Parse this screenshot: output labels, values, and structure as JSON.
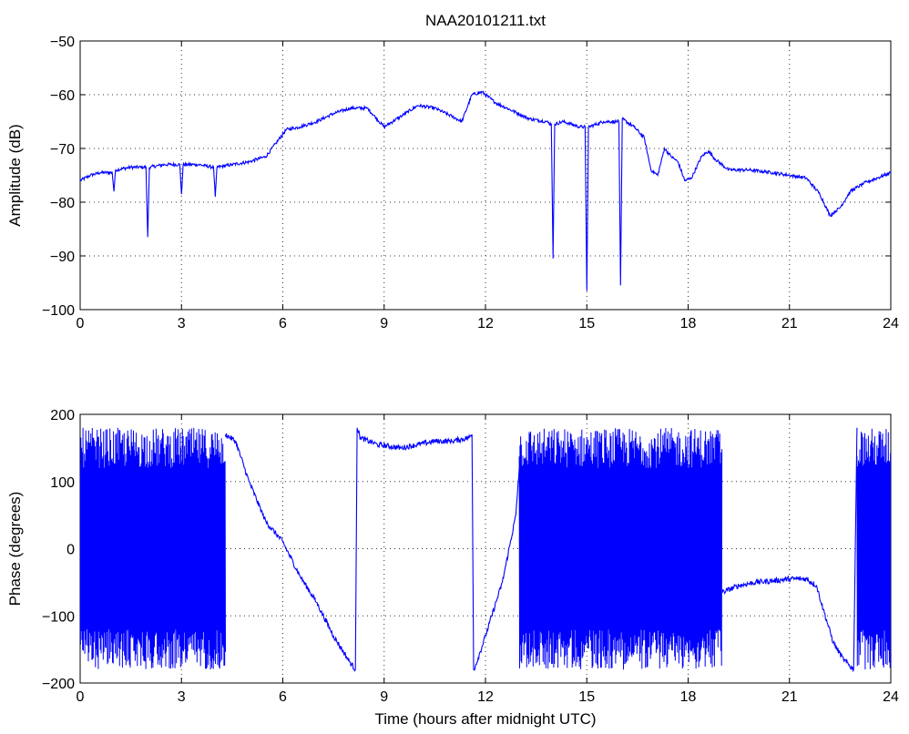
{
  "chart_data": [
    {
      "type": "line",
      "title": "NAA20101211.txt",
      "xlabel": "",
      "ylabel": "Amplitude (dB)",
      "xlim": [
        0,
        24
      ],
      "ylim": [
        -100,
        -50
      ],
      "xticks": [
        "0",
        "3",
        "6",
        "9",
        "12",
        "15",
        "18",
        "21",
        "24"
      ],
      "yticks": [
        "-50",
        "-60",
        "-70",
        "-80",
        "-90",
        "-100"
      ],
      "grid": true,
      "line_color": "#0000ff",
      "series": [
        {
          "x": [
            0,
            0.3,
            0.6,
            0.95,
            1.0,
            1.05,
            1.5,
            1.95,
            2.0,
            2.05,
            2.5,
            2.95,
            3.0,
            3.05,
            3.5,
            3.95,
            4.0,
            4.05,
            4.5,
            5.0,
            5.5,
            5.8,
            6.1,
            6.5,
            7.0,
            7.5,
            8.0,
            8.5,
            9.0,
            9.5,
            10.0,
            10.5,
            11.0,
            11.3,
            11.6,
            11.9,
            12.3,
            12.8,
            13.3,
            13.8,
            13.95,
            14.0,
            14.05,
            14.3,
            14.8,
            14.95,
            15.0,
            15.05,
            15.5,
            15.95,
            16.0,
            16.05,
            16.4,
            16.7,
            16.9,
            17.1,
            17.3,
            17.5,
            17.7,
            17.9,
            18.1,
            18.4,
            18.6,
            18.8,
            19.2,
            19.8,
            20.5,
            21.0,
            21.5,
            21.9,
            22.2,
            22.5,
            22.8,
            23.2,
            23.6,
            24.0
          ],
          "y": [
            -76,
            -75,
            -74.5,
            -74.5,
            -78,
            -74,
            -73.5,
            -73.5,
            -86.5,
            -73.5,
            -73,
            -73,
            -78.5,
            -73,
            -73,
            -73.5,
            -79,
            -73.5,
            -73,
            -72.5,
            -71.5,
            -69,
            -66.5,
            -66,
            -65,
            -63.5,
            -62.5,
            -62.5,
            -66,
            -64,
            -62,
            -62.5,
            -64,
            -65,
            -60,
            -59.5,
            -61.5,
            -63,
            -64.5,
            -65,
            -65.5,
            -90.5,
            -65.5,
            -65,
            -66,
            -66,
            -96.5,
            -66,
            -65,
            -65,
            -95.5,
            -64.5,
            -66,
            -68,
            -74,
            -75,
            -70,
            -71.5,
            -72.5,
            -76,
            -75.5,
            -71.5,
            -70.5,
            -72,
            -74,
            -74,
            -74.5,
            -75,
            -75.5,
            -78.5,
            -82.5,
            -81,
            -78,
            -76.5,
            -75.5,
            -74.5
          ]
        }
      ]
    },
    {
      "type": "line",
      "title": "",
      "xlabel": "Time (hours after midnight UTC)",
      "ylabel": "Phase (degrees)",
      "xlim": [
        0,
        24
      ],
      "ylim": [
        -200,
        200
      ],
      "xticks": [
        "0",
        "3",
        "6",
        "9",
        "12",
        "15",
        "18",
        "21",
        "24"
      ],
      "yticks": [
        "200",
        "100",
        "0",
        "-100",
        "-200"
      ],
      "grid": true,
      "line_color": "#0000ff",
      "note_dense_regions": [
        [
          0,
          4.3
        ],
        [
          13.0,
          19.0
        ],
        [
          23.0,
          24.0
        ]
      ],
      "series": [
        {
          "x": [
            4.3,
            4.6,
            5.0,
            5.5,
            6.0,
            6.5,
            7.0,
            7.5,
            8.0,
            8.15,
            8.2,
            8.3,
            8.8,
            9.5,
            10.0,
            10.5,
            11.0,
            11.5,
            11.6,
            11.65,
            11.7,
            12.0,
            12.5,
            12.9,
            13.0
          ],
          "y": [
            170,
            160,
            100,
            40,
            10,
            -40,
            -80,
            -130,
            -170,
            -180,
            180,
            165,
            155,
            150,
            155,
            160,
            160,
            165,
            170,
            -180,
            -175,
            -130,
            -50,
            50,
            120
          ]
        },
        {
          "x": [
            19.0,
            19.5,
            20.0,
            20.5,
            21.0,
            21.5,
            21.8,
            22.0,
            22.3,
            22.6,
            22.9,
            23.0
          ],
          "y": [
            -65,
            -55,
            -50,
            -48,
            -45,
            -45,
            -55,
            -90,
            -140,
            -165,
            -180,
            180
          ]
        }
      ]
    }
  ]
}
